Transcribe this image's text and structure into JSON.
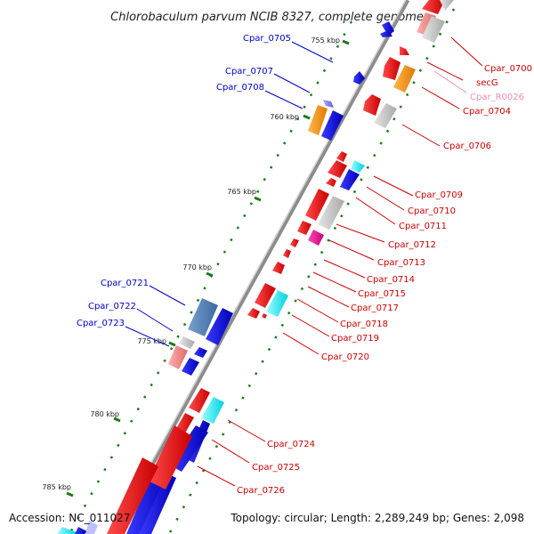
{
  "title": "Chlorobaculum parvum NCIB 8327, complete genome",
  "accession": "Accession: NC_011027",
  "summary": "Topology: circular; Length: 2,289,249 bp; Genes: 2,098",
  "colors": {
    "backbone": "#8c8c8c",
    "forward_label": "#0000cc",
    "reverse_label": "#cc0000",
    "rna_label": "#f08cb4",
    "tick": "#1a7a1a"
  },
  "ticks": [
    "755 kbp",
    "760 kbp",
    "765 kbp",
    "770 kbp",
    "775 kbp",
    "780 kbp",
    "785 kbp"
  ],
  "forward_labels": [
    "Cpar_0705",
    "Cpar_0707",
    "Cpar_0708",
    "Cpar_0721",
    "Cpar_0722",
    "Cpar_0723"
  ],
  "reverse_labels": [
    "Cpar_0700",
    "secG",
    "Cpar_R0026",
    "Cpar_0704",
    "Cpar_0706",
    "Cpar_0709",
    "Cpar_0710",
    "Cpar_0711",
    "Cpar_0712",
    "Cpar_0713",
    "Cpar_0714",
    "Cpar_0715",
    "Cpar_0717",
    "Cpar_0718",
    "Cpar_0719",
    "Cpar_0720",
    "Cpar_0724",
    "Cpar_0725",
    "Cpar_0726"
  ]
}
